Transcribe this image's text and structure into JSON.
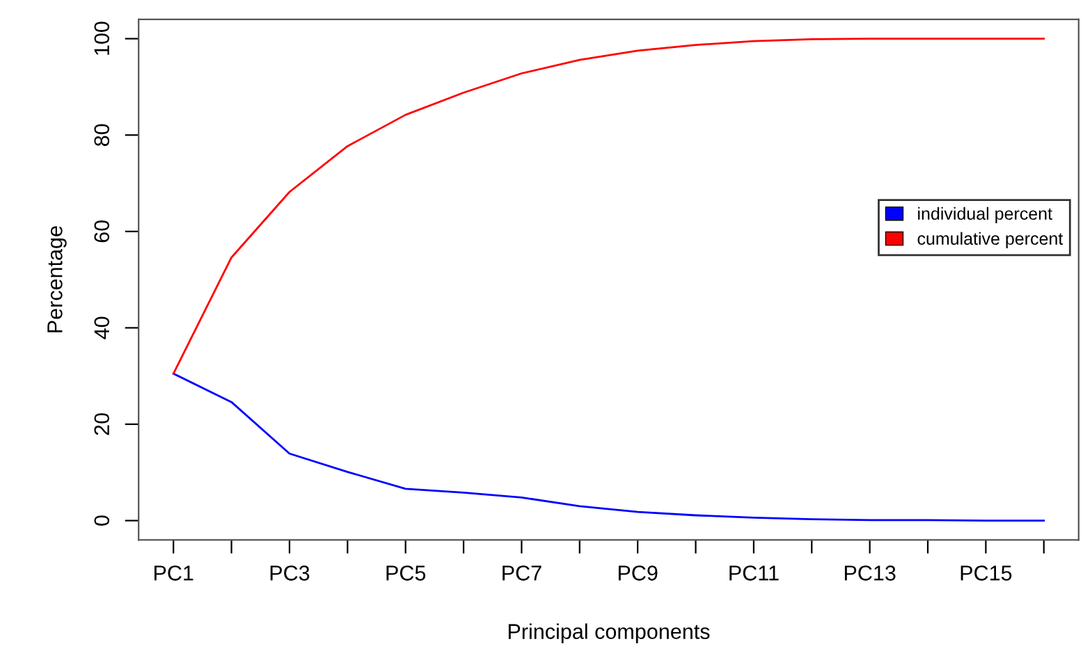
{
  "chart_data": {
    "type": "line",
    "xlabel": "Principal components",
    "ylabel": "Percentage",
    "categories": [
      "PC1",
      null,
      "PC3",
      null,
      "PC5",
      null,
      "PC7",
      null,
      "PC9",
      null,
      "PC11",
      null,
      "PC13",
      null,
      "PC15",
      null
    ],
    "series": [
      {
        "name": "individual percent",
        "color": "#0000ff",
        "values": [
          30.5,
          24.6,
          13.9,
          10.1,
          6.6,
          5.8,
          4.8,
          3.0,
          1.8,
          1.1,
          0.6,
          0.3,
          0.1,
          0.1,
          0.0,
          0.0
        ]
      },
      {
        "name": "cumulative percent",
        "color": "#ff0000",
        "values": [
          30.5,
          54.6,
          68.2,
          77.7,
          84.2,
          88.8,
          92.8,
          95.6,
          97.5,
          98.7,
          99.5,
          99.9,
          100,
          100,
          100,
          100
        ]
      }
    ],
    "ylim": [
      -4,
      104
    ],
    "yticks": [
      0,
      20,
      40,
      60,
      80,
      100
    ],
    "grid": false,
    "legend": "right",
    "marker": "none",
    "line_style": "solid"
  }
}
